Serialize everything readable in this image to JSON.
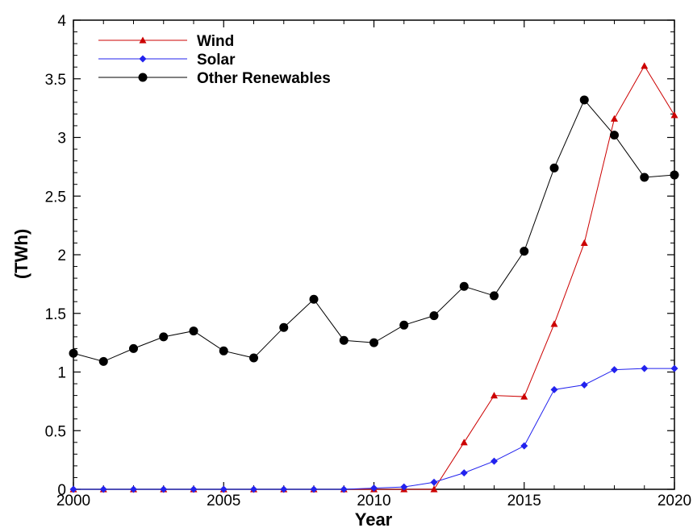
{
  "chart_data": {
    "type": "line",
    "title": "",
    "xlabel": "Year",
    "ylabel": "(TWh)",
    "xlim": [
      2000,
      2020
    ],
    "ylim": [
      0,
      4
    ],
    "x_ticks": [
      2000,
      2005,
      2010,
      2015,
      2020
    ],
    "y_ticks": [
      0,
      0.5,
      1,
      1.5,
      2,
      2.5,
      3,
      3.5,
      4
    ],
    "x_tick_labels": [
      "2000",
      "2005",
      "2010",
      "2015",
      "2020"
    ],
    "y_tick_labels": [
      "0",
      "0.5",
      "1",
      "1.5",
      "2",
      "2.5",
      "3",
      "3.5",
      "4"
    ],
    "grid": false,
    "legend_position": "top-left",
    "x": [
      2000,
      2001,
      2002,
      2003,
      2004,
      2005,
      2006,
      2007,
      2008,
      2009,
      2010,
      2011,
      2012,
      2013,
      2014,
      2015,
      2016,
      2017,
      2018,
      2019,
      2020
    ],
    "series": [
      {
        "name": "Wind",
        "color": "#cc0000",
        "marker": "triangle",
        "values": [
          0,
          0,
          0,
          0,
          0,
          0,
          0,
          0,
          0,
          0,
          0,
          0,
          0,
          0.4,
          0.8,
          0.79,
          1.41,
          2.1,
          3.16,
          3.61,
          3.19
        ]
      },
      {
        "name": "Solar",
        "color": "#2222ee",
        "marker": "diamond",
        "values": [
          0,
          0,
          0,
          0,
          0,
          0,
          0,
          0,
          0,
          0,
          0.01,
          0.02,
          0.06,
          0.14,
          0.24,
          0.37,
          0.85,
          0.89,
          1.02,
          1.03,
          1.03
        ]
      },
      {
        "name": "Other Renewables",
        "color": "#000000",
        "marker": "circle",
        "values": [
          1.16,
          1.09,
          1.2,
          1.3,
          1.35,
          1.18,
          1.12,
          1.38,
          1.62,
          1.27,
          1.25,
          1.4,
          1.48,
          1.73,
          1.65,
          2.03,
          2.74,
          3.32,
          3.02,
          2.66,
          2.68
        ]
      }
    ]
  }
}
